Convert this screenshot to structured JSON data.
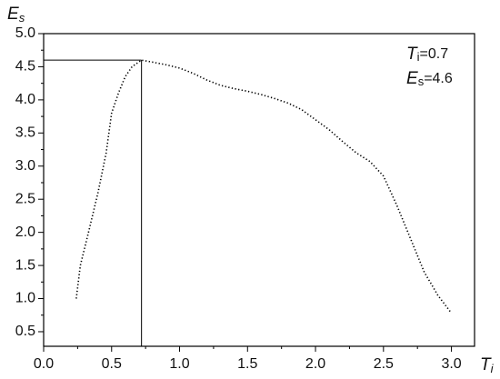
{
  "chart_data": {
    "type": "line",
    "axis_labels": {
      "y": {
        "symbol": "E",
        "subscript": "s"
      },
      "x": {
        "symbol": "T",
        "subscript": "i"
      }
    },
    "x": [
      0.24,
      0.27,
      0.33,
      0.4,
      0.46,
      0.5,
      0.55,
      0.6,
      0.65,
      0.72,
      0.8,
      0.9,
      1.0,
      1.1,
      1.2,
      1.3,
      1.4,
      1.5,
      1.6,
      1.7,
      1.8,
      1.9,
      2.0,
      2.1,
      2.2,
      2.3,
      2.4,
      2.5,
      2.6,
      2.7,
      2.8,
      2.9,
      3.0
    ],
    "series": [
      {
        "color": "#000000",
        "values": [
          1.0,
          1.5,
          2.0,
          2.6,
          3.2,
          3.8,
          4.1,
          4.35,
          4.5,
          4.6,
          4.57,
          4.53,
          4.48,
          4.4,
          4.3,
          4.22,
          4.17,
          4.13,
          4.08,
          4.02,
          3.95,
          3.85,
          3.7,
          3.55,
          3.37,
          3.2,
          3.07,
          2.85,
          2.4,
          1.9,
          1.4,
          1.05,
          0.78
        ]
      }
    ],
    "marker": {
      "x": 0.72,
      "y": 4.6
    },
    "annotations": [
      {
        "symbol": "T",
        "subscript": "i",
        "text": "=0.7"
      },
      {
        "symbol": "E",
        "subscript": "s",
        "text": "=4.6"
      }
    ],
    "xlim": [
      0,
      3.17
    ],
    "ylim": [
      0.28,
      5.0
    ],
    "xticks": [
      {
        "value": 0,
        "label": "0.0"
      },
      {
        "value": 0.5,
        "label": "0.5"
      },
      {
        "value": 1,
        "label": "1.0"
      },
      {
        "value": 1.5,
        "label": "1.5"
      },
      {
        "value": 2,
        "label": "2.0"
      },
      {
        "value": 2.5,
        "label": "2.5"
      },
      {
        "value": 3,
        "label": "3.0"
      }
    ],
    "yticks": [
      {
        "value": 0.5,
        "label": "0.5"
      },
      {
        "value": 1,
        "label": "1.0"
      },
      {
        "value": 1.5,
        "label": "1.5"
      },
      {
        "value": 2,
        "label": "2.0"
      },
      {
        "value": 2.5,
        "label": "2.5"
      },
      {
        "value": 3,
        "label": "3.0"
      },
      {
        "value": 3.5,
        "label": "3.5"
      },
      {
        "value": 4,
        "label": "4.0"
      },
      {
        "value": 4.5,
        "label": "4.5"
      },
      {
        "value": 5,
        "label": "5.0"
      }
    ],
    "grid": false
  }
}
